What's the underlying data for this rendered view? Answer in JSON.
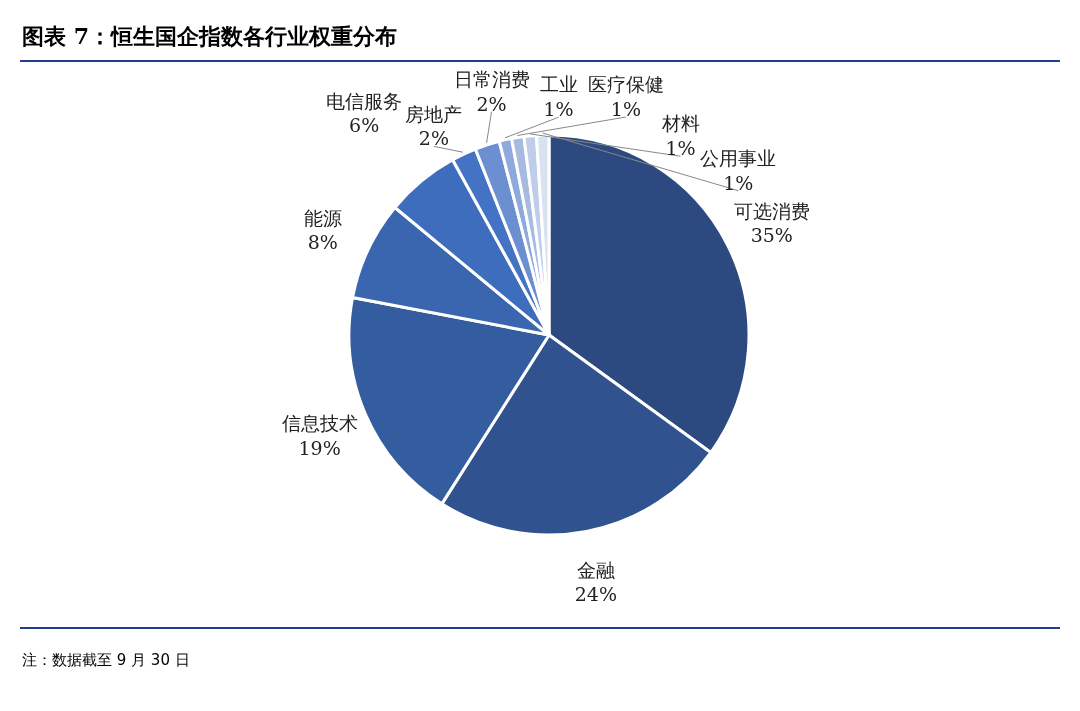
{
  "chart_data": {
    "type": "pie",
    "title": "图表 7：恒生国企指数各行业权重分布",
    "categories": [
      "可选消费",
      "金融",
      "信息技术",
      "能源",
      "电信服务",
      "房地产",
      "日常消费",
      "工业",
      "医疗保健",
      "材料",
      "公用事业"
    ],
    "values": [
      35,
      24,
      19,
      8,
      6,
      2,
      2,
      1,
      1,
      1,
      1
    ],
    "value_labels": [
      "35%",
      "24%",
      "19%",
      "8%",
      "6%",
      "2%",
      "2%",
      "1%",
      "1%",
      "1%",
      "1%"
    ],
    "colors": [
      "#2c4a80",
      "#30538f",
      "#345d9f",
      "#3a66b0",
      "#3f6dbd",
      "#4472c4",
      "#6b8fd1",
      "#8ea9db",
      "#a7badf",
      "#c0cdea",
      "#d9e1f2"
    ],
    "annotations": [
      "注：数据截至 9 月 30 日"
    ]
  }
}
